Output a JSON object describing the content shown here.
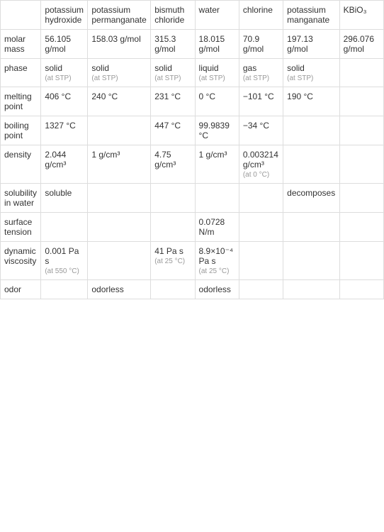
{
  "table": {
    "columns": [
      "",
      "potassium hydroxide",
      "potassium permanganate",
      "bismuth chloride",
      "water",
      "chlorine",
      "potassium manganate",
      "KBiO₃"
    ],
    "rows": [
      {
        "header": "molar mass",
        "cells": [
          {
            "main": "56.105 g/mol",
            "sub": ""
          },
          {
            "main": "158.03 g/mol",
            "sub": ""
          },
          {
            "main": "315.3 g/mol",
            "sub": ""
          },
          {
            "main": "18.015 g/mol",
            "sub": ""
          },
          {
            "main": "70.9 g/mol",
            "sub": ""
          },
          {
            "main": "197.13 g/mol",
            "sub": ""
          },
          {
            "main": "296.076 g/mol",
            "sub": ""
          }
        ]
      },
      {
        "header": "phase",
        "cells": [
          {
            "main": "solid",
            "sub": "(at STP)"
          },
          {
            "main": "solid",
            "sub": "(at STP)"
          },
          {
            "main": "solid",
            "sub": "(at STP)"
          },
          {
            "main": "liquid",
            "sub": "(at STP)"
          },
          {
            "main": "gas",
            "sub": "(at STP)"
          },
          {
            "main": "solid",
            "sub": "(at STP)"
          },
          {
            "main": "",
            "sub": ""
          }
        ]
      },
      {
        "header": "melting point",
        "cells": [
          {
            "main": "406 °C",
            "sub": ""
          },
          {
            "main": "240 °C",
            "sub": ""
          },
          {
            "main": "231 °C",
            "sub": ""
          },
          {
            "main": "0 °C",
            "sub": ""
          },
          {
            "main": "−101 °C",
            "sub": ""
          },
          {
            "main": "190 °C",
            "sub": ""
          },
          {
            "main": "",
            "sub": ""
          }
        ]
      },
      {
        "header": "boiling point",
        "cells": [
          {
            "main": "1327 °C",
            "sub": ""
          },
          {
            "main": "",
            "sub": ""
          },
          {
            "main": "447 °C",
            "sub": ""
          },
          {
            "main": "99.9839 °C",
            "sub": ""
          },
          {
            "main": "−34 °C",
            "sub": ""
          },
          {
            "main": "",
            "sub": ""
          },
          {
            "main": "",
            "sub": ""
          }
        ]
      },
      {
        "header": "density",
        "cells": [
          {
            "main": "2.044 g/cm³",
            "sub": ""
          },
          {
            "main": "1 g/cm³",
            "sub": ""
          },
          {
            "main": "4.75 g/cm³",
            "sub": ""
          },
          {
            "main": "1 g/cm³",
            "sub": ""
          },
          {
            "main": "0.003214 g/cm³",
            "sub": "(at 0 °C)"
          },
          {
            "main": "",
            "sub": ""
          },
          {
            "main": "",
            "sub": ""
          }
        ]
      },
      {
        "header": "solubility in water",
        "cells": [
          {
            "main": "soluble",
            "sub": ""
          },
          {
            "main": "",
            "sub": ""
          },
          {
            "main": "",
            "sub": ""
          },
          {
            "main": "",
            "sub": ""
          },
          {
            "main": "",
            "sub": ""
          },
          {
            "main": "decomposes",
            "sub": ""
          },
          {
            "main": "",
            "sub": ""
          }
        ]
      },
      {
        "header": "surface tension",
        "cells": [
          {
            "main": "",
            "sub": ""
          },
          {
            "main": "",
            "sub": ""
          },
          {
            "main": "",
            "sub": ""
          },
          {
            "main": "0.0728 N/m",
            "sub": ""
          },
          {
            "main": "",
            "sub": ""
          },
          {
            "main": "",
            "sub": ""
          },
          {
            "main": "",
            "sub": ""
          }
        ]
      },
      {
        "header": "dynamic viscosity",
        "cells": [
          {
            "main": "0.001 Pa s",
            "sub": "(at 550 °C)"
          },
          {
            "main": "",
            "sub": ""
          },
          {
            "main": "41 Pa s",
            "sub": "(at 25 °C)"
          },
          {
            "main": "8.9×10⁻⁴ Pa s",
            "sub": "(at 25 °C)"
          },
          {
            "main": "",
            "sub": ""
          },
          {
            "main": "",
            "sub": ""
          },
          {
            "main": "",
            "sub": ""
          }
        ]
      },
      {
        "header": "odor",
        "cells": [
          {
            "main": "",
            "sub": ""
          },
          {
            "main": "odorless",
            "sub": ""
          },
          {
            "main": "",
            "sub": ""
          },
          {
            "main": "odorless",
            "sub": ""
          },
          {
            "main": "",
            "sub": ""
          },
          {
            "main": "",
            "sub": ""
          },
          {
            "main": "",
            "sub": ""
          }
        ]
      }
    ],
    "col_widths": [
      "56px",
      "62px",
      "62px",
      "62px",
      "62px",
      "62px",
      "62px",
      "62px"
    ],
    "border_color": "#dddddd",
    "text_color": "#333333",
    "sub_text_color": "#999999",
    "font_size": 12,
    "sub_font_size": 10
  }
}
